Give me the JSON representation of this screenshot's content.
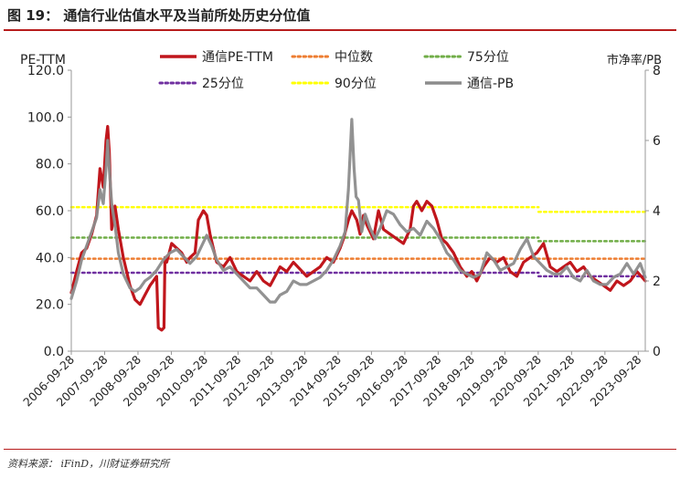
{
  "figure": {
    "title": "图 19：  通信行业估值水平及当前所处历史分位值",
    "source": "资料来源：  iFinD，川财证券研究所"
  },
  "chart_data": {
    "type": "line",
    "left_axis_label": "PE-TTM",
    "right_axis_label": "市净率/PB",
    "ylim_left": [
      0,
      120
    ],
    "ylim_right": [
      0,
      8
    ],
    "y_ticks_left": [
      "0.0",
      "20.0",
      "40.0",
      "60.0",
      "80.0",
      "100.0",
      "120.0"
    ],
    "y_ticks_right": [
      "0",
      "2",
      "4",
      "6",
      "8"
    ],
    "x_ticks": [
      "2006-09-28",
      "2007-09-28",
      "2008-09-28",
      "2009-09-28",
      "2010-09-28",
      "2011-09-28",
      "2012-09-28",
      "2013-09-28",
      "2014-09-28",
      "2015-09-28",
      "2016-09-28",
      "2017-09-28",
      "2018-09-28",
      "2019-09-28",
      "2020-09-28",
      "2021-09-28",
      "2022-09-28",
      "2023-09-28"
    ],
    "x_range": [
      2006.74,
      2023.95
    ],
    "legend": [
      {
        "name": "通信PE-TTM",
        "color": "#c0161c",
        "style": "solid"
      },
      {
        "name": "中位数",
        "color": "#ed7d31",
        "style": "dotted"
      },
      {
        "name": "75分位",
        "color": "#70ad47",
        "style": "dotted"
      },
      {
        "name": "25分位",
        "color": "#7030a0",
        "style": "dotted"
      },
      {
        "name": "90分位",
        "color": "#ffff00",
        "style": "dotted"
      },
      {
        "name": "通信-PB",
        "color": "#8c8c8c",
        "style": "solid"
      }
    ],
    "series": [
      {
        "name": "通信PE-TTM",
        "axis": "left",
        "color": "#c0161c",
        "x": [
          2006.74,
          2006.9,
          2007.05,
          2007.2,
          2007.35,
          2007.5,
          2007.6,
          2007.7,
          2007.78,
          2007.83,
          2007.88,
          2007.95,
          2008.05,
          2008.15,
          2008.3,
          2008.5,
          2008.65,
          2008.8,
          2008.95,
          2009.1,
          2009.2,
          2009.3,
          2009.35,
          2009.45,
          2009.52,
          2009.55,
          2009.6,
          2009.75,
          2009.9,
          2010.05,
          2010.2,
          2010.3,
          2010.45,
          2010.55,
          2010.7,
          2010.8,
          2010.9,
          2011.0,
          2011.1,
          2011.3,
          2011.5,
          2011.7,
          2011.9,
          2012.1,
          2012.3,
          2012.5,
          2012.7,
          2012.85,
          2013.0,
          2013.2,
          2013.4,
          2013.6,
          2013.8,
          2014.0,
          2014.2,
          2014.4,
          2014.6,
          2014.8,
          2014.9,
          2015.05,
          2015.15,
          2015.3,
          2015.4,
          2015.5,
          2015.6,
          2015.8,
          2015.95,
          2016.1,
          2016.3,
          2016.5,
          2016.7,
          2016.9,
          2017.0,
          2017.1,
          2017.25,
          2017.4,
          2017.55,
          2017.7,
          2017.85,
          2018.0,
          2018.2,
          2018.4,
          2018.6,
          2018.75,
          2018.9,
          2019.1,
          2019.3,
          2019.5,
          2019.7,
          2019.9,
          2020.1,
          2020.3,
          2020.5,
          2020.7,
          2020.9,
          2021.1,
          2021.3,
          2021.5,
          2021.7,
          2021.9,
          2022.1,
          2022.3,
          2022.5,
          2022.7,
          2022.9,
          2023.1,
          2023.3,
          2023.5,
          2023.7,
          2023.95
        ],
        "y": [
          25,
          34,
          42,
          44,
          50,
          58,
          78,
          70,
          90,
          96,
          85,
          52,
          62,
          52,
          40,
          28,
          22,
          20,
          24,
          28,
          30,
          32,
          10,
          9,
          10,
          40,
          38,
          46,
          44,
          42,
          38,
          40,
          42,
          56,
          60,
          58,
          50,
          44,
          38,
          36,
          40,
          34,
          32,
          30,
          34,
          30,
          28,
          32,
          36,
          34,
          38,
          35,
          32,
          34,
          36,
          40,
          38,
          44,
          48,
          56,
          60,
          56,
          50,
          58,
          54,
          48,
          60,
          52,
          50,
          48,
          46,
          52,
          62,
          64,
          60,
          64,
          62,
          56,
          48,
          46,
          42,
          36,
          32,
          34,
          30,
          36,
          40,
          38,
          40,
          34,
          32,
          38,
          40,
          42,
          46,
          36,
          34,
          36,
          38,
          34,
          36,
          32,
          30,
          28,
          26,
          30,
          28,
          30,
          34,
          30
        ]
      },
      {
        "name": "通信-PB",
        "axis": "right",
        "color": "#8c8c8c",
        "x": [
          2006.74,
          2006.9,
          2007.05,
          2007.2,
          2007.35,
          2007.5,
          2007.6,
          2007.7,
          2007.78,
          2007.83,
          2007.88,
          2007.95,
          2008.05,
          2008.15,
          2008.3,
          2008.5,
          2008.65,
          2008.8,
          2008.95,
          2009.1,
          2009.3,
          2009.5,
          2009.7,
          2009.9,
          2010.1,
          2010.3,
          2010.5,
          2010.65,
          2010.8,
          2010.95,
          2011.1,
          2011.3,
          2011.5,
          2011.7,
          2011.9,
          2012.1,
          2012.3,
          2012.5,
          2012.7,
          2012.85,
          2013.0,
          2013.2,
          2013.4,
          2013.6,
          2013.8,
          2014.0,
          2014.2,
          2014.4,
          2014.6,
          2014.8,
          2014.95,
          2015.05,
          2015.15,
          2015.22,
          2015.28,
          2015.35,
          2015.45,
          2015.55,
          2015.7,
          2015.85,
          2016.0,
          2016.2,
          2016.4,
          2016.6,
          2016.8,
          2017.0,
          2017.2,
          2017.4,
          2017.6,
          2017.8,
          2018.0,
          2018.2,
          2018.4,
          2018.6,
          2018.8,
          2019.0,
          2019.2,
          2019.4,
          2019.6,
          2019.8,
          2020.0,
          2020.2,
          2020.4,
          2020.6,
          2020.8,
          2021.0,
          2021.2,
          2021.4,
          2021.6,
          2021.8,
          2022.0,
          2022.2,
          2022.4,
          2022.6,
          2022.8,
          2023.0,
          2023.2,
          2023.4,
          2023.6,
          2023.8,
          2023.95
        ],
        "y": [
          1.5,
          2.0,
          2.6,
          3.0,
          3.4,
          3.8,
          4.6,
          4.2,
          5.2,
          6.0,
          5.2,
          4.2,
          3.6,
          2.8,
          2.2,
          1.8,
          1.7,
          1.8,
          2.0,
          2.1,
          2.3,
          2.6,
          2.8,
          2.9,
          2.7,
          2.5,
          2.7,
          3.0,
          3.3,
          3.0,
          2.6,
          2.3,
          2.4,
          2.2,
          2.0,
          1.8,
          1.8,
          1.6,
          1.4,
          1.4,
          1.6,
          1.7,
          2.0,
          1.9,
          1.9,
          2.0,
          2.1,
          2.3,
          2.6,
          3.0,
          3.4,
          4.6,
          6.6,
          5.2,
          4.4,
          4.3,
          3.4,
          3.9,
          3.5,
          3.2,
          3.5,
          4.0,
          3.9,
          3.6,
          3.4,
          3.5,
          3.3,
          3.7,
          3.5,
          3.2,
          2.8,
          2.6,
          2.3,
          2.2,
          2.1,
          2.2,
          2.8,
          2.6,
          2.3,
          2.4,
          2.5,
          2.9,
          3.2,
          2.7,
          2.5,
          2.3,
          2.2,
          2.2,
          2.4,
          2.1,
          2.0,
          2.3,
          2.0,
          1.9,
          1.9,
          2.1,
          2.2,
          2.5,
          2.2,
          2.5,
          2.1
        ]
      },
      {
        "name": "中位数",
        "axis": "left",
        "color": "#ed7d31",
        "segments": [
          [
            2006.74,
            2023.95,
            39.5
          ]
        ]
      },
      {
        "name": "75分位",
        "axis": "left",
        "color": "#70ad47",
        "segments": [
          [
            2006.74,
            2020.75,
            48.5
          ],
          [
            2020.75,
            2023.95,
            47
          ]
        ]
      },
      {
        "name": "25分位",
        "axis": "left",
        "color": "#7030a0",
        "segments": [
          [
            2006.74,
            2020.75,
            33.5
          ],
          [
            2020.75,
            2023.95,
            32
          ]
        ]
      },
      {
        "name": "90分位",
        "axis": "left",
        "color": "#ffff00",
        "segments": [
          [
            2006.74,
            2020.75,
            61.5
          ],
          [
            2020.75,
            2023.95,
            59.5
          ]
        ]
      }
    ]
  }
}
